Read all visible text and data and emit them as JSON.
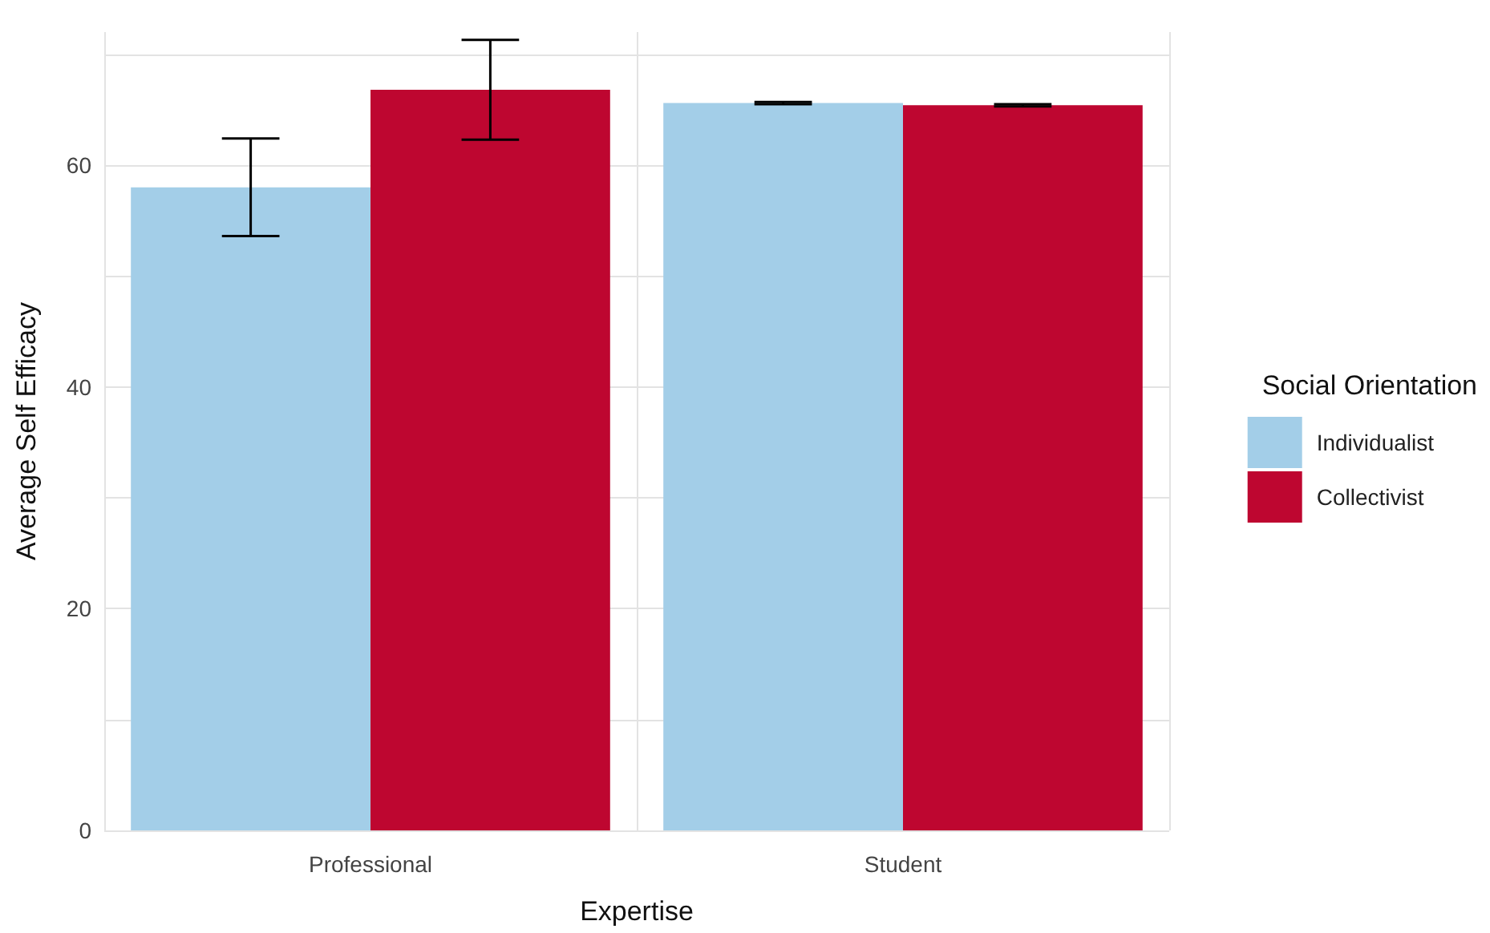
{
  "chart_data": {
    "type": "bar",
    "xlabel": "Expertise",
    "ylabel": "Average Self Efficacy",
    "legend_title": "Social Orientation",
    "categories": [
      "Professional",
      "Student"
    ],
    "series": [
      {
        "name": "Individualist",
        "color": "#a3cee8",
        "values": [
          58.0,
          65.6
        ],
        "errors": [
          4.4,
          0.1
        ]
      },
      {
        "name": "Collectivist",
        "color": "#be0630",
        "values": [
          66.8,
          65.4
        ],
        "errors": [
          4.5,
          0.1
        ]
      }
    ],
    "ylim": [
      0,
      72
    ],
    "yticks": [
      0,
      {
        "value": 10,
        "label": null
      },
      20,
      {
        "value": 30,
        "label": null
      },
      40,
      {
        "value": 50,
        "label": null
      },
      60,
      {
        "value": 70,
        "label": null
      }
    ],
    "grid": true,
    "legend": "right"
  }
}
